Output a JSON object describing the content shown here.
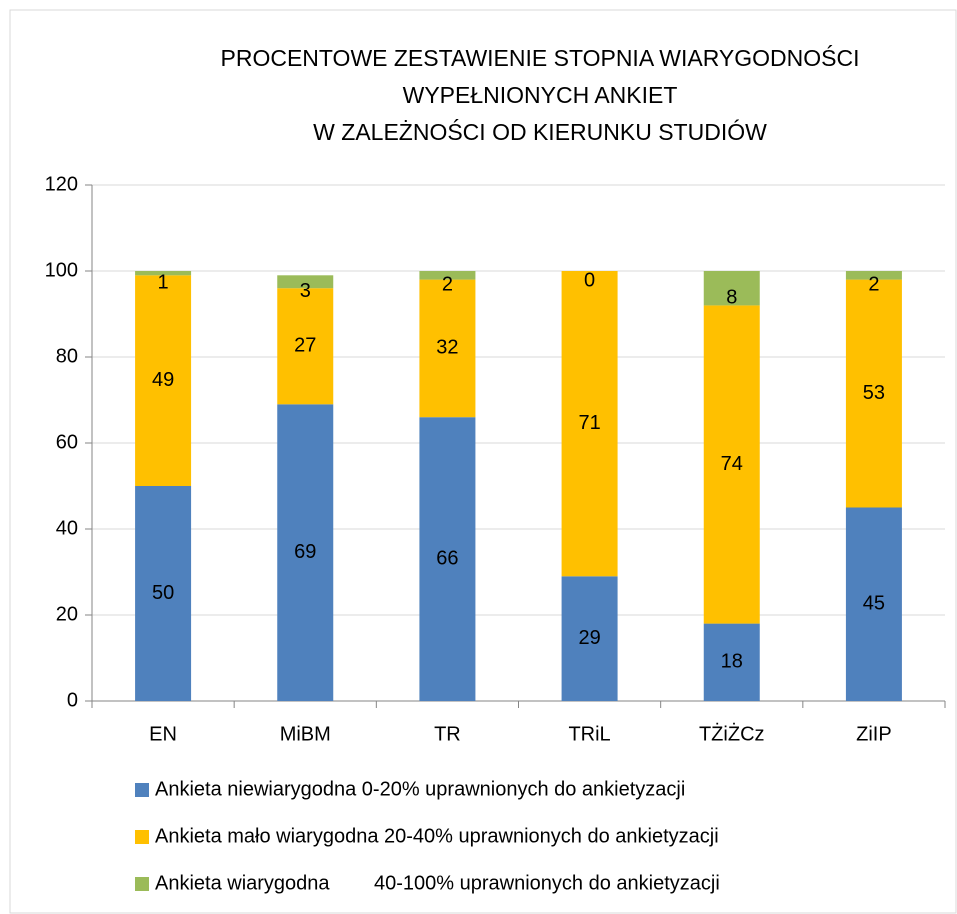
{
  "chart_data": {
    "type": "stacked_bar",
    "title": [
      "PROCENTOWE ZESTAWIENIE STOPNIA WIARYGODNOŚCI",
      "WYPEŁNIONYCH ANKIET",
      "W ZALEŻNOŚCI OD KIERUNKU STUDIÓW"
    ],
    "categories": [
      "EN",
      "MiBM",
      "TR",
      "TRiL",
      "TŻiŻCz",
      "ZiIP"
    ],
    "series": [
      {
        "name": "Ankieta niewiarygodna 0-20% uprawnionych do ankietyzacji",
        "color": "#4f81bd",
        "values": [
          50,
          69,
          66,
          29,
          18,
          45
        ]
      },
      {
        "name": "Ankieta mało wiarygodna 20-40% uprawnionych do ankietyzacji",
        "color": "#ffc000",
        "values": [
          49,
          27,
          32,
          71,
          74,
          53
        ]
      },
      {
        "name": "Ankieta wiarygodna        40-100% uprawnionych do ankietyzacji",
        "color": "#9bbb59",
        "values": [
          1,
          3,
          2,
          0,
          8,
          2
        ]
      }
    ],
    "ylim": [
      0,
      120
    ],
    "yticks": [
      0,
      20,
      40,
      60,
      80,
      100,
      120
    ],
    "grid": true,
    "legend": "bottom"
  }
}
